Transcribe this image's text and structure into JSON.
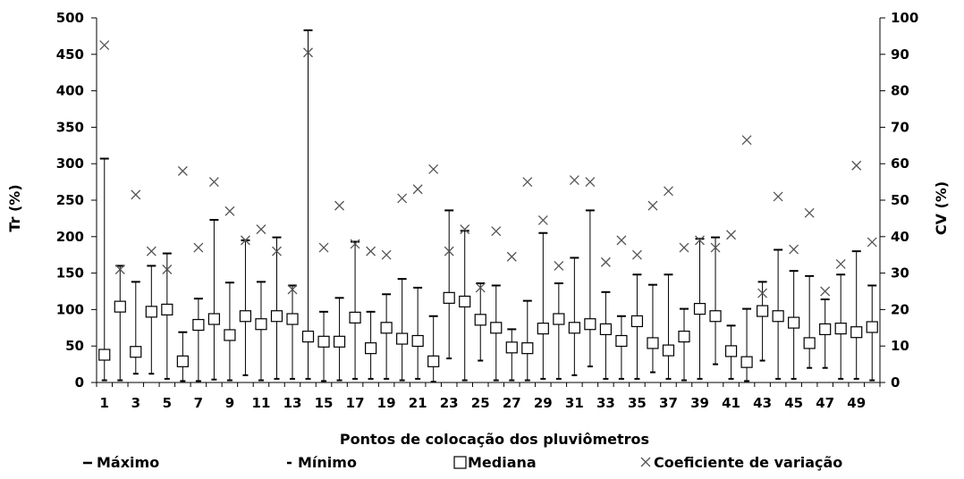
{
  "chart_data": {
    "type": "scatter",
    "xlabel": "Pontos de colocação dos pluviômetros",
    "ylabel_left": "Tr (%)",
    "ylabel_right": "CV (%)",
    "ylim_left": [
      0,
      500
    ],
    "ylim_right": [
      0,
      100
    ],
    "yticks_left": [
      0,
      50,
      100,
      150,
      200,
      250,
      300,
      350,
      400,
      450,
      500
    ],
    "yticks_right": [
      0,
      10,
      20,
      30,
      40,
      50,
      60,
      70,
      80,
      90,
      100
    ],
    "x": [
      1,
      2,
      3,
      4,
      5,
      6,
      7,
      8,
      9,
      10,
      11,
      12,
      13,
      14,
      15,
      16,
      17,
      18,
      19,
      20,
      21,
      22,
      23,
      24,
      25,
      26,
      27,
      28,
      29,
      30,
      31,
      32,
      33,
      34,
      35,
      36,
      37,
      38,
      39,
      40,
      41,
      42,
      43,
      44,
      45,
      46,
      47,
      48,
      49,
      50
    ],
    "xticks": [
      1,
      3,
      5,
      7,
      9,
      11,
      13,
      15,
      17,
      19,
      21,
      23,
      25,
      27,
      29,
      31,
      33,
      35,
      37,
      39,
      41,
      43,
      45,
      47,
      49
    ],
    "legend": [
      {
        "label": "Máximo",
        "marker": "dash"
      },
      {
        "label": "Mínimo",
        "marker": "dot-dash"
      },
      {
        "label": "Mediana",
        "marker": "square"
      },
      {
        "label": "Coeficiente de variação",
        "marker": "x"
      }
    ],
    "series": [
      {
        "name": "Máximo",
        "axis": "left",
        "values": [
          307,
          160,
          138,
          160,
          177,
          69,
          115,
          223,
          137,
          195,
          138,
          199,
          133,
          483,
          97,
          116,
          193,
          97,
          121,
          142,
          130,
          91,
          236,
          208,
          136,
          133,
          73,
          112,
          205,
          136,
          171,
          236,
          124,
          91,
          148,
          134,
          148,
          101,
          197,
          199,
          78,
          101,
          138,
          182,
          153,
          146,
          114,
          148,
          180,
          133
        ]
      },
      {
        "name": "Mínimo",
        "axis": "left",
        "values": [
          3,
          3,
          12,
          12,
          5,
          2,
          2,
          4,
          3,
          10,
          3,
          5,
          5,
          5,
          2,
          3,
          5,
          5,
          5,
          3,
          5,
          1,
          33,
          3,
          30,
          3,
          3,
          3,
          5,
          5,
          10,
          22,
          5,
          5,
          5,
          14,
          5,
          3,
          5,
          25,
          5,
          2,
          30,
          5,
          5,
          20,
          20,
          5,
          5,
          3
        ]
      },
      {
        "name": "Mediana",
        "axis": "left",
        "values": [
          38,
          104,
          42,
          97,
          100,
          29,
          79,
          87,
          65,
          91,
          80,
          91,
          87,
          63,
          56,
          56,
          89,
          47,
          75,
          60,
          57,
          29,
          116,
          111,
          86,
          75,
          48,
          47,
          74,
          87,
          75,
          80,
          73,
          57,
          84,
          54,
          44,
          63,
          101,
          91,
          43,
          28,
          98,
          91,
          82,
          54,
          73,
          74,
          69,
          76
        ]
      },
      {
        "name": "Coeficiente de variação",
        "axis": "right",
        "values": [
          92.5,
          31.0,
          51.5,
          36.0,
          31.0,
          58.0,
          37.0,
          55.0,
          47.0,
          39.0,
          42.0,
          36.0,
          25.5,
          90.5,
          37.0,
          48.5,
          38.0,
          36.0,
          35.0,
          50.5,
          53.0,
          58.5,
          36.0,
          42.0,
          26.0,
          41.5,
          34.5,
          55.0,
          44.5,
          32.0,
          55.5,
          55.0,
          33.0,
          39.0,
          35.0,
          48.5,
          52.5,
          37.0,
          39.0,
          37.0,
          40.5,
          66.5,
          24.5,
          51.0,
          36.5,
          46.5,
          25.0,
          32.5,
          59.5,
          38.5
        ]
      }
    ]
  }
}
